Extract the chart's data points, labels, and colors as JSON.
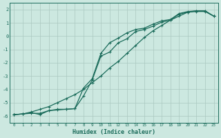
{
  "xlabel": "Humidex (Indice chaleur)",
  "ylabel": "",
  "xlim": [
    -0.5,
    23.5
  ],
  "ylim": [
    -6.5,
    2.5
  ],
  "yticks": [
    2,
    1,
    0,
    -1,
    -2,
    -3,
    -4,
    -5,
    -6
  ],
  "xticks": [
    0,
    1,
    2,
    3,
    4,
    5,
    6,
    7,
    8,
    9,
    10,
    11,
    12,
    13,
    14,
    15,
    16,
    17,
    18,
    19,
    20,
    21,
    22,
    23
  ],
  "bg_color": "#cce8e0",
  "grid_color": "#aac8c0",
  "line_color": "#1a6b5a",
  "line1_x": [
    0,
    1,
    2,
    3,
    4,
    5,
    6,
    7,
    8,
    9,
    10,
    11,
    12,
    13,
    14,
    15,
    16,
    17,
    18,
    19,
    20,
    21,
    22,
    23
  ],
  "line1_y": [
    -5.9,
    -5.85,
    -5.7,
    -5.5,
    -5.3,
    -5.0,
    -4.7,
    -4.4,
    -4.0,
    -3.5,
    -3.0,
    -2.4,
    -1.9,
    -1.3,
    -0.7,
    -0.1,
    0.4,
    0.8,
    1.2,
    1.5,
    1.8,
    1.9,
    1.9,
    1.5
  ],
  "line2_x": [
    0,
    1,
    2,
    3,
    4,
    5,
    6,
    7,
    8,
    9,
    10,
    11,
    12,
    13,
    14,
    15,
    16,
    17,
    18,
    19,
    20,
    21,
    22,
    23
  ],
  "line2_y": [
    -5.9,
    -5.85,
    -5.75,
    -5.9,
    -5.6,
    -5.55,
    -5.5,
    -5.45,
    -4.5,
    -3.3,
    -1.5,
    -1.2,
    -0.5,
    -0.2,
    0.35,
    0.5,
    0.75,
    1.05,
    1.2,
    1.65,
    1.8,
    1.85,
    1.85,
    1.5
  ],
  "line3_x": [
    0,
    1,
    2,
    3,
    4,
    5,
    6,
    7,
    8,
    9,
    10,
    11,
    12,
    13,
    14,
    15,
    16,
    17,
    18,
    19,
    20,
    21,
    22,
    23
  ],
  "line3_y": [
    -5.9,
    -5.85,
    -5.8,
    -5.8,
    -5.6,
    -5.5,
    -5.5,
    -5.45,
    -3.9,
    -3.2,
    -1.3,
    -0.5,
    -0.15,
    0.25,
    0.5,
    0.6,
    0.9,
    1.15,
    1.25,
    1.7,
    1.85,
    1.9,
    1.9,
    1.5
  ]
}
